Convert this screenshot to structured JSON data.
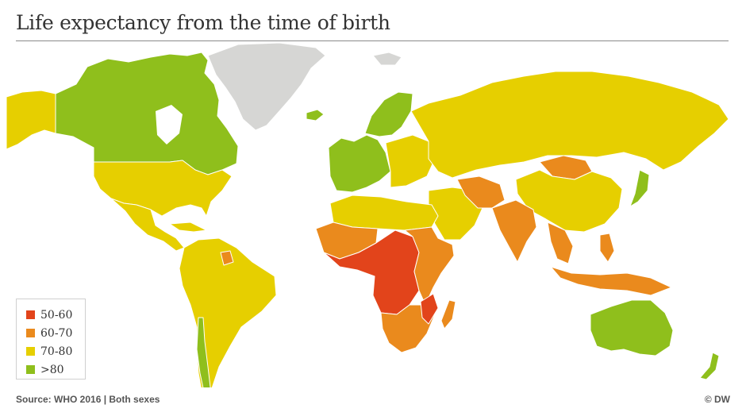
{
  "header": {
    "title": "Life expectancy from the time of birth"
  },
  "colors": {
    "band_50_60": "#e2441b",
    "band_60_70": "#ea8a1d",
    "band_70_80": "#e6cf00",
    "band_over_80": "#8fbf1c",
    "no_data": "#d6d6d4",
    "border": "#ffffff"
  },
  "legend": {
    "items": [
      {
        "label": "50-60",
        "color": "#e2441b"
      },
      {
        "label": "60-70",
        "color": "#ea8a1d"
      },
      {
        "label": "70-80",
        "color": "#e6cf00"
      },
      {
        "label": ">80",
        "color": "#8fbf1c"
      }
    ]
  },
  "footer": {
    "source": "Source: WHO 2016 | Both sexes",
    "credit": "© DW"
  }
}
